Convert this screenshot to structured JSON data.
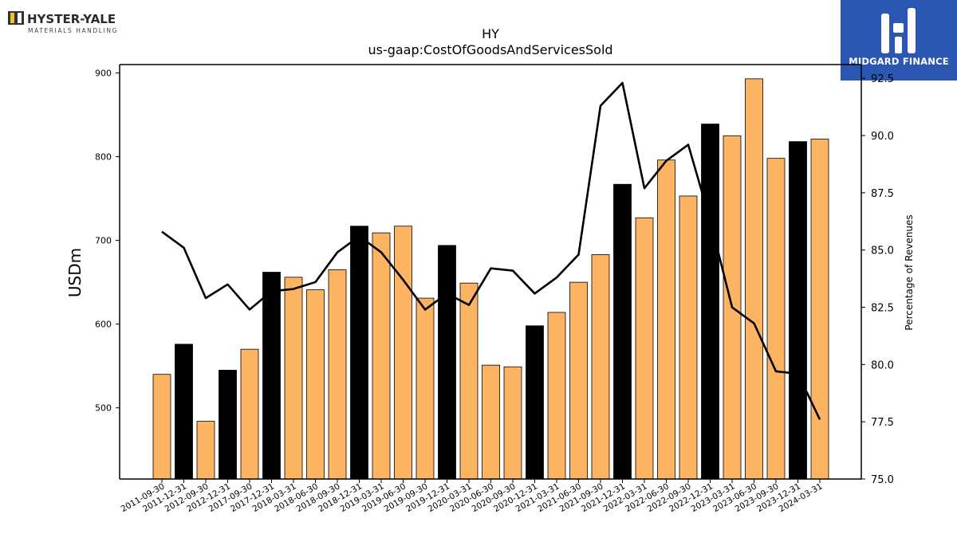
{
  "brand": {
    "left_name": "HYSTER-YALE",
    "left_sub": "MATERIALS HANDLING",
    "right_name": "MIDGARD FINANCE",
    "right_color": "#2b57b3"
  },
  "chart_data": {
    "type": "bar",
    "title": "HY",
    "subtitle": "us-gaap:CostOfGoodsAndServicesSold",
    "ylabel": "USDm",
    "y2label": "Percentage of Revenues",
    "ylim": [
      415,
      910
    ],
    "y2lim": [
      75.0,
      93.1
    ],
    "yticks": [
      500,
      600,
      700,
      800,
      900
    ],
    "y2ticks": [
      "75.0",
      "77.5",
      "80.0",
      "82.5",
      "85.0",
      "87.5",
      "90.0",
      "92.5"
    ],
    "categories": [
      "2011-09-30",
      "2011-12-31",
      "2012-09-30",
      "2012-12-31",
      "2017-09-30",
      "2017-12-31",
      "2018-03-31",
      "2018-06-30",
      "2018-09-30",
      "2018-12-31",
      "2019-03-31",
      "2019-06-30",
      "2019-09-30",
      "2019-12-31",
      "2020-03-31",
      "2020-06-30",
      "2020-09-30",
      "2020-12-31",
      "2021-03-31",
      "2021-06-30",
      "2021-09-30",
      "2021-12-31",
      "2022-03-31",
      "2022-06-30",
      "2022-09-30",
      "2022-12-31",
      "2023-03-31",
      "2023-06-30",
      "2023-09-30",
      "2023-12-31",
      "2024-03-31"
    ],
    "series": [
      {
        "kind": "bar",
        "values": [
          540,
          576,
          484,
          545,
          570,
          662,
          656,
          641,
          665,
          717,
          709,
          717,
          631,
          694,
          649,
          551,
          549,
          598,
          614,
          650,
          683,
          767,
          727,
          796,
          753,
          839,
          825,
          893,
          798,
          818,
          821
        ],
        "highlight": [
          false,
          true,
          false,
          true,
          false,
          true,
          false,
          false,
          false,
          true,
          false,
          false,
          false,
          true,
          false,
          false,
          false,
          true,
          false,
          false,
          false,
          true,
          false,
          false,
          false,
          true,
          false,
          false,
          false,
          true,
          false
        ]
      },
      {
        "kind": "line",
        "axis": "right",
        "values": [
          85.8,
          85.1,
          82.9,
          83.5,
          82.4,
          83.2,
          83.3,
          83.6,
          84.9,
          85.6,
          84.9,
          83.7,
          82.4,
          83.1,
          82.6,
          84.2,
          84.1,
          83.1,
          83.8,
          84.8,
          91.3,
          92.3,
          87.7,
          88.9,
          89.6,
          86.3,
          82.5,
          81.8,
          79.7,
          79.6,
          77.6
        ]
      }
    ],
    "colors": {
      "bar": "#fdb462",
      "bar_highlight": "#000000",
      "line": "#000000"
    }
  }
}
